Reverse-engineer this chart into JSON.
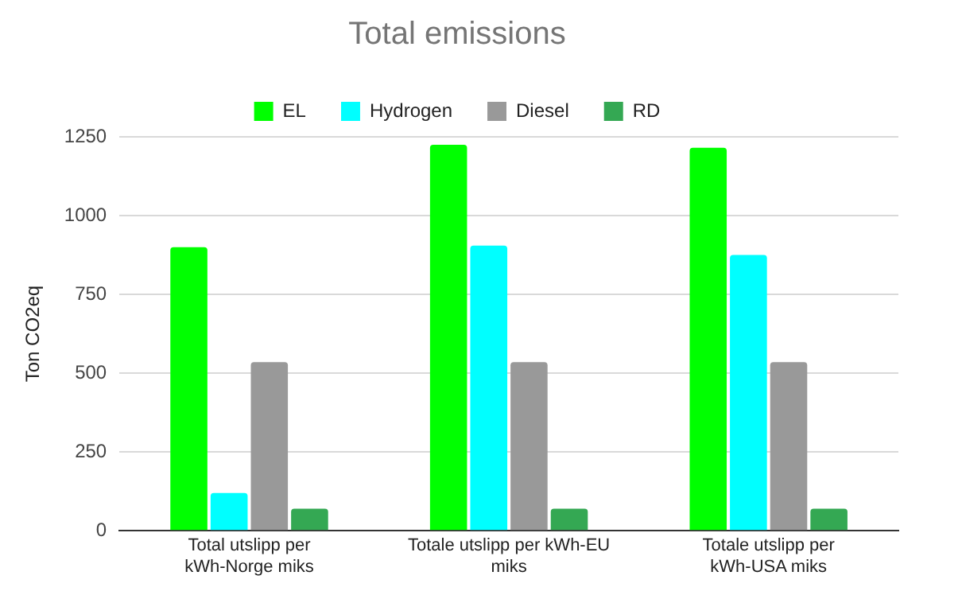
{
  "chart_data": {
    "type": "bar",
    "title": "Total emissions",
    "ylabel": "Ton CO2eq",
    "categories": [
      "Total utslipp per kWh-Norge miks",
      "Totale utslipp per kWh-EU miks",
      "Totale utslipp per kWh-USA miks"
    ],
    "series": [
      {
        "name": "EL",
        "color": "#00ff00",
        "values": [
          900,
          1225,
          1215
        ]
      },
      {
        "name": "Hydrogen",
        "color": "#00ffff",
        "values": [
          120,
          905,
          875
        ]
      },
      {
        "name": "Diesel",
        "color": "#999999",
        "values": [
          535,
          535,
          535
        ]
      },
      {
        "name": "RD",
        "color": "#34a853",
        "values": [
          70,
          70,
          70
        ]
      }
    ],
    "ylim": [
      0,
      1250
    ],
    "yticks": [
      0,
      250,
      500,
      750,
      1000,
      1250
    ],
    "grid": "y",
    "legend": "top"
  }
}
